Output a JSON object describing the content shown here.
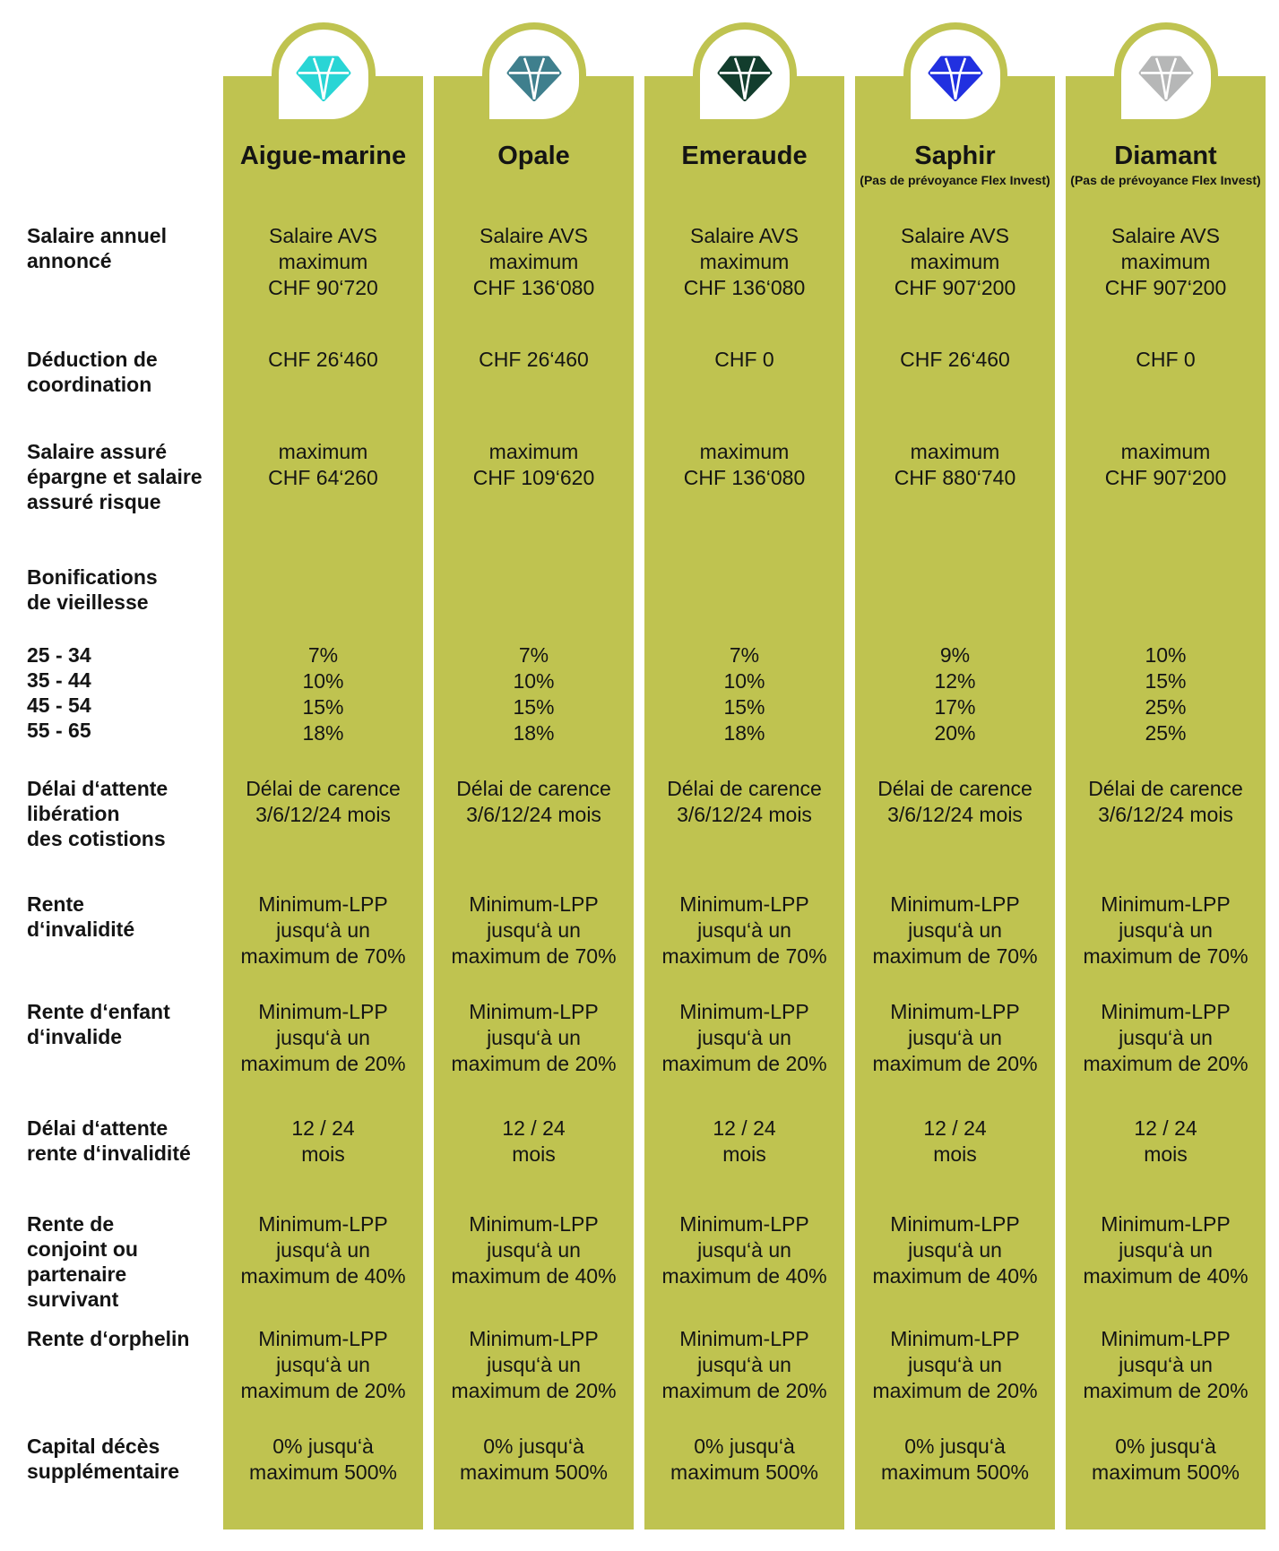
{
  "colors": {
    "column_bg": "#bfc350",
    "page_bg": "#ffffff",
    "text": "#141414",
    "facet_lines": "#ffffff"
  },
  "chart_data": {
    "type": "table",
    "title": "",
    "columns": [
      {
        "id": "aigue-marine",
        "title": "Aigue-marine",
        "caption": "",
        "gem_icon": "gem-icon",
        "gem_color": "#29d5d5"
      },
      {
        "id": "opale",
        "title": "Opale",
        "caption": "",
        "gem_icon": "gem-icon",
        "gem_color": "#3f7f8d"
      },
      {
        "id": "emeraude",
        "title": "Emeraude",
        "caption": "",
        "gem_icon": "gem-icon",
        "gem_color": "#123d2d"
      },
      {
        "id": "saphir",
        "title": "Saphir",
        "caption": "(Pas de prévoyance Flex Invest)",
        "gem_icon": "gem-icon",
        "gem_color": "#2130e0"
      },
      {
        "id": "diamant",
        "title": "Diamant",
        "caption": "(Pas de prévoyance Flex Invest)",
        "gem_icon": "gem-icon",
        "gem_color": "#b6b7b7"
      }
    ],
    "rows": [
      {
        "id": "salaire-annuel-annonce",
        "label": "Salaire annuel\nannoncé",
        "values": [
          "Salaire AVS\nmaximum\nCHF 90‘720",
          "Salaire AVS\nmaximum\nCHF 136‘080",
          "Salaire AVS\nmaximum\nCHF 136‘080",
          "Salaire AVS\nmaximum\nCHF 907‘200",
          "Salaire AVS\nmaximum\nCHF 907‘200"
        ]
      },
      {
        "id": "deduction-coordination",
        "label": "Déduction de\ncoordination",
        "values": [
          "CHF 26‘460",
          "CHF 26‘460",
          "CHF 0",
          "CHF 26‘460",
          "CHF 0"
        ]
      },
      {
        "id": "salaire-assure",
        "label": "Salaire assuré\népargne et salaire\nassuré risque",
        "values": [
          "maximum\nCHF 64‘260",
          "maximum\nCHF 109‘620",
          "maximum\nCHF 136‘080",
          "maximum\nCHF 880‘740",
          "maximum\nCHF 907‘200"
        ]
      },
      {
        "id": "bonifications-vieillesse",
        "label": "Bonifications\nde vieillesse",
        "values": [
          "",
          "",
          "",
          "",
          ""
        ]
      },
      {
        "id": "bonifications-ages",
        "label": "25 - 34\n35 - 44\n45 - 54\n55 - 65",
        "values": [
          "7%\n10%\n15%\n18%",
          "7%\n10%\n15%\n18%",
          "7%\n10%\n15%\n18%",
          "9%\n12%\n17%\n20%",
          "10%\n15%\n25%\n25%"
        ]
      },
      {
        "id": "delai-attente-liberation",
        "label": "Délai d‘attente\nlibération\ndes cotistions",
        "values": [
          "Délai de carence\n3/6/12/24 mois",
          "Délai de carence\n3/6/12/24 mois",
          "Délai de carence\n3/6/12/24 mois",
          "Délai de carence\n3/6/12/24 mois",
          "Délai de carence\n3/6/12/24 mois"
        ]
      },
      {
        "id": "rente-invalidite",
        "label": "Rente\nd‘invalidité",
        "values": [
          "Minimum-LPP\njusqu‘à un\nmaximum de 70%",
          "Minimum-LPP\njusqu‘à un\nmaximum de 70%",
          "Minimum-LPP\njusqu‘à un\nmaximum de 70%",
          "Minimum-LPP\njusqu‘à un\nmaximum de 70%",
          "Minimum-LPP\njusqu‘à un\nmaximum de 70%"
        ]
      },
      {
        "id": "rente-enfant-invalide",
        "label": "Rente d‘enfant\nd‘invalide",
        "values": [
          "Minimum-LPP\njusqu‘à un\nmaximum de 20%",
          "Minimum-LPP\njusqu‘à un\nmaximum de 20%",
          "Minimum-LPP\njusqu‘à un\nmaximum de 20%",
          "Minimum-LPP\njusqu‘à un\nmaximum de 20%",
          "Minimum-LPP\njusqu‘à un\nmaximum de 20%"
        ]
      },
      {
        "id": "delai-attente-rente",
        "label": "Délai d‘attente\nrente d‘invalidité",
        "values": [
          "12 / 24\nmois",
          "12 / 24\nmois",
          "12 / 24\nmois",
          "12 / 24\nmois",
          "12 / 24\nmois"
        ]
      },
      {
        "id": "rente-conjoint",
        "label": "Rente de\nconjoint ou\npartenaire\nsurvivant",
        "values": [
          "Minimum-LPP\njusqu‘à un\nmaximum de 40%",
          "Minimum-LPP\njusqu‘à un\nmaximum de 40%",
          "Minimum-LPP\njusqu‘à un\nmaximum de 40%",
          "Minimum-LPP\njusqu‘à un\nmaximum de 40%",
          "Minimum-LPP\njusqu‘à un\nmaximum de 40%"
        ]
      },
      {
        "id": "rente-orphelin",
        "label": "Rente d‘orphelin",
        "values": [
          "Minimum-LPP\njusqu‘à un\nmaximum de 20%",
          "Minimum-LPP\njusqu‘à un\nmaximum de 20%",
          "Minimum-LPP\njusqu‘à un\nmaximum de 20%",
          "Minimum-LPP\njusqu‘à un\nmaximum de 20%",
          "Minimum-LPP\njusqu‘à un\nmaximum de 20%"
        ]
      },
      {
        "id": "capital-deces",
        "label": "Capital décès\nsupplémentaire",
        "values": [
          "0% jusqu‘à\nmaximum 500%",
          "0% jusqu‘à\nmaximum 500%",
          "0% jusqu‘à\nmaximum 500%",
          "0% jusqu‘à\nmaximum 500%",
          "0% jusqu‘à\nmaximum 500%"
        ]
      }
    ]
  }
}
